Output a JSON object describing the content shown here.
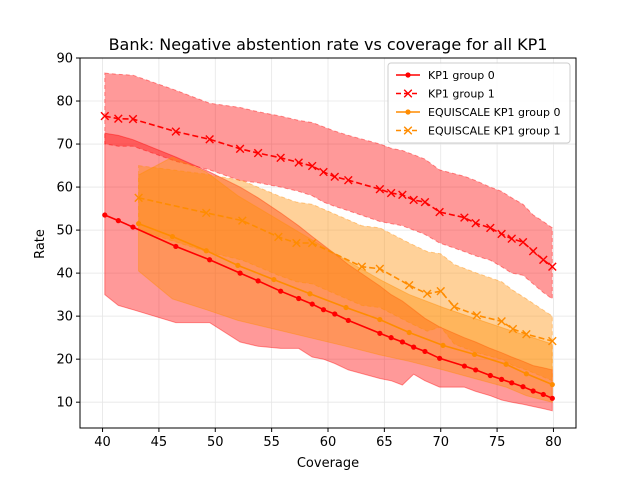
{
  "chart_data": {
    "type": "line",
    "title": "Bank: Negative abstention rate vs coverage for all KP1",
    "xlabel": "Coverage",
    "ylabel": "Rate",
    "xlim": [
      38.0,
      82.0
    ],
    "ylim": [
      4.0,
      90.0
    ],
    "xticks": [
      40,
      45,
      50,
      55,
      60,
      65,
      70,
      75,
      80
    ],
    "yticks": [
      10,
      20,
      30,
      40,
      50,
      60,
      70,
      80,
      90
    ],
    "grid": true,
    "legend_position": "top-right",
    "series": [
      {
        "name": "KP1 group 0",
        "color": "#ff0000",
        "linestyle": "solid",
        "marker": "dot",
        "x": [
          40.2,
          41.4,
          42.7,
          46.5,
          49.5,
          52.2,
          53.8,
          55.8,
          57.4,
          58.6,
          59.6,
          60.6,
          61.8,
          64.6,
          65.6,
          66.6,
          67.6,
          68.6,
          69.9,
          72.1,
          73.1,
          74.4,
          75.4,
          76.3,
          77.3,
          78.2,
          79.1,
          79.9
        ],
        "y": [
          53.5,
          52.2,
          50.7,
          46.2,
          43.1,
          40.0,
          38.2,
          35.8,
          34.1,
          32.8,
          31.5,
          30.5,
          29.0,
          26.0,
          25.0,
          24.0,
          22.8,
          21.8,
          20.2,
          18.4,
          17.5,
          16.2,
          15.3,
          14.5,
          13.6,
          12.6,
          11.8,
          10.9
        ],
        "band_upper": [
          72.5,
          72.0,
          71.0,
          67.0,
          63.5,
          60.0,
          57.5,
          54.0,
          51.0,
          48.5,
          46.5,
          44.5,
          42.0,
          37.0,
          35.0,
          33.5,
          31.5,
          29.5,
          27.5,
          25.0,
          24.0,
          22.5,
          21.5,
          20.5,
          19.5,
          18.5,
          18.0,
          17.5
        ],
        "band_lower": [
          35.0,
          32.5,
          31.5,
          28.5,
          28.5,
          24.0,
          23.0,
          22.5,
          22.5,
          20.5,
          20.0,
          19.0,
          17.5,
          15.5,
          15.0,
          14.0,
          16.5,
          15.0,
          13.5,
          13.5,
          12.5,
          11.5,
          10.5,
          10.0,
          9.5,
          9.0,
          8.5,
          8.0
        ]
      },
      {
        "name": "KP1 group 1",
        "color": "#ff0000",
        "linestyle": "dashed",
        "marker": "x",
        "x": [
          40.2,
          41.4,
          42.7,
          46.5,
          49.5,
          52.2,
          53.8,
          55.8,
          57.4,
          58.6,
          59.6,
          60.6,
          61.8,
          64.6,
          65.6,
          66.6,
          67.6,
          68.6,
          69.9,
          72.1,
          73.1,
          74.4,
          75.4,
          76.3,
          77.3,
          78.2,
          79.1,
          79.9
        ],
        "y": [
          76.5,
          75.9,
          75.8,
          72.9,
          71.1,
          68.9,
          67.9,
          66.8,
          65.7,
          64.9,
          63.5,
          62.4,
          61.6,
          59.5,
          58.6,
          58.2,
          57.0,
          56.5,
          54.2,
          52.9,
          51.6,
          50.5,
          49.1,
          48.0,
          47.2,
          45.1,
          43.1,
          41.5
        ],
        "band_upper": [
          86.5,
          86.2,
          86.0,
          82.5,
          79.5,
          78.5,
          77.5,
          76.5,
          75.5,
          75.0,
          74.0,
          73.0,
          72.0,
          70.0,
          69.0,
          68.5,
          67.5,
          66.5,
          64.0,
          62.5,
          61.5,
          60.0,
          59.0,
          57.5,
          56.0,
          53.5,
          52.0,
          50.5
        ],
        "band_lower": [
          70.0,
          69.5,
          69.5,
          66.0,
          64.0,
          61.5,
          61.0,
          60.0,
          59.0,
          58.0,
          56.5,
          55.5,
          54.5,
          52.0,
          51.5,
          51.0,
          50.0,
          49.0,
          47.0,
          45.0,
          44.0,
          43.0,
          41.5,
          40.0,
          39.5,
          37.5,
          35.5,
          34.0
        ]
      },
      {
        "name": "EQUISCALE KP1 group 0",
        "color": "#ff8c00",
        "linestyle": "solid",
        "marker": "dot",
        "x": [
          43.2,
          46.2,
          49.2,
          52.0,
          55.2,
          58.4,
          61.6,
          64.6,
          67.2,
          70.2,
          73.0,
          75.8,
          77.6,
          79.9
        ],
        "y": [
          51.5,
          48.5,
          45.2,
          41.8,
          38.5,
          35.2,
          32.0,
          29.2,
          26.2,
          23.2,
          21.1,
          18.8,
          16.6,
          14.1
        ],
        "band_upper": [
          62.8,
          67.0,
          63.5,
          58.0,
          53.0,
          48.0,
          43.0,
          38.5,
          35.0,
          32.0,
          29.5,
          27.0,
          25.5,
          23.5
        ],
        "band_lower": [
          40.5,
          34.0,
          31.5,
          29.0,
          27.0,
          25.0,
          23.0,
          21.0,
          19.5,
          17.5,
          15.5,
          13.5,
          11.5,
          10.0
        ]
      },
      {
        "name": "EQUISCALE KP1 group 1",
        "color": "#ff8c00",
        "linestyle": "dashed",
        "marker": "x",
        "x": [
          43.2,
          49.2,
          52.4,
          55.6,
          57.2,
          58.6,
          63.0,
          64.6,
          67.2,
          68.8,
          70.0,
          71.2,
          73.2,
          75.4,
          76.4,
          77.6,
          79.9
        ],
        "y": [
          57.5,
          54.0,
          52.2,
          48.4,
          47.0,
          47.0,
          41.5,
          41.0,
          37.2,
          35.2,
          35.8,
          32.2,
          30.2,
          28.8,
          27.0,
          25.8,
          24.2
        ],
        "band_upper": [
          65.0,
          63.0,
          61.5,
          58.0,
          56.5,
          56.0,
          51.0,
          50.5,
          47.0,
          45.0,
          44.5,
          42.0,
          40.0,
          38.0,
          36.0,
          34.0,
          30.0
        ],
        "band_lower": [
          50.0,
          45.0,
          43.0,
          39.5,
          38.0,
          37.5,
          32.5,
          32.0,
          28.5,
          26.5,
          27.5,
          23.5,
          21.5,
          20.0,
          18.5,
          17.5,
          15.0
        ]
      }
    ]
  }
}
